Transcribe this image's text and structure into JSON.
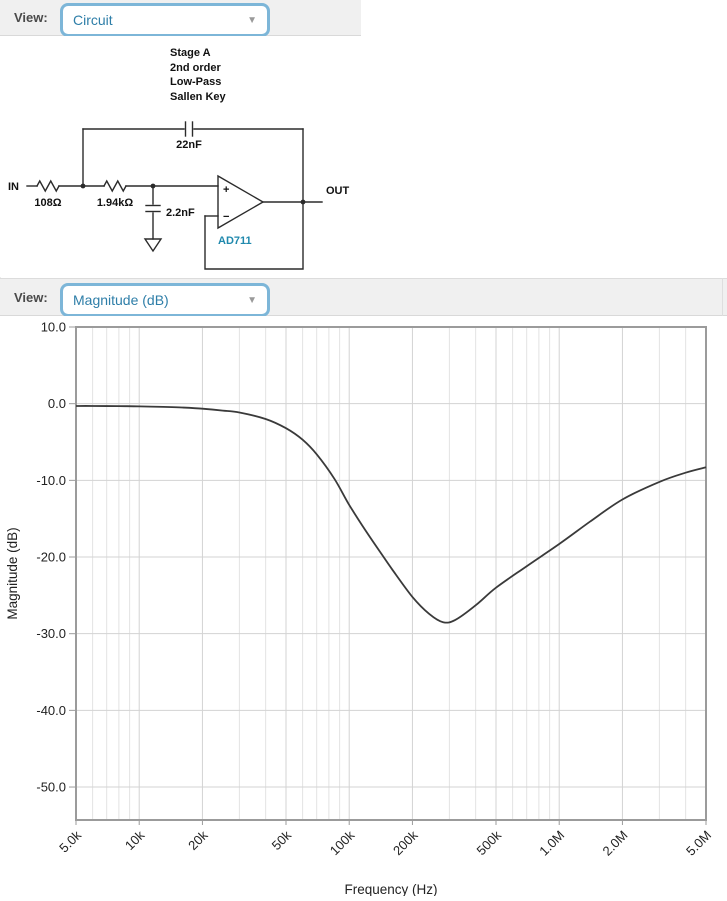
{
  "circuit_view": {
    "label": "View:",
    "dropdown_value": "Circuit",
    "stage_info": [
      "Stage A",
      "2nd order",
      "Low-Pass",
      "Sallen Key"
    ],
    "components": {
      "in": "IN",
      "out": "OUT",
      "r1": "108Ω",
      "r2": "1.94kΩ",
      "c_shunt": "2.2nF",
      "c_feedback": "22nF",
      "opamp": "AD711",
      "plus": "+",
      "minus": "−"
    }
  },
  "magnitude_view": {
    "label": "View:",
    "dropdown_value": "Magnitude (dB)"
  },
  "colors": {
    "bar_background": "#f0f0f0",
    "dropdown_border": "#7db6d8",
    "dropdown_text": "#2e7ea8",
    "opamp_label": "#2089ad",
    "circuit_line": "#2b2b2b",
    "curve": "#3a3a3a",
    "grid_major": "#d3d3d3",
    "grid_minor": "#e3e3e3",
    "plot_border": "#9b9b9b",
    "tick_text": "#222222"
  },
  "chart_data": {
    "type": "line",
    "xlabel": "Frequency (Hz)",
    "ylabel": "Magnitude (dB)",
    "x_scale": "log",
    "x_range": [
      5000,
      5000000
    ],
    "y_range": [
      10,
      -54.3
    ],
    "grid": true,
    "y_ticks": [
      {
        "db": 10,
        "label": "10.0"
      },
      {
        "db": 0,
        "label": "0.0"
      },
      {
        "db": -10,
        "label": "-10.0"
      },
      {
        "db": -20,
        "label": "-20.0"
      },
      {
        "db": -30,
        "label": "-30.0"
      },
      {
        "db": -40,
        "label": "-40.0"
      },
      {
        "db": -50,
        "label": "-50.0"
      }
    ],
    "x_ticks": [
      {
        "f": 5000,
        "label": "5.0k"
      },
      {
        "f": 10000,
        "label": "10k"
      },
      {
        "f": 20000,
        "label": "20k"
      },
      {
        "f": 50000,
        "label": "50k"
      },
      {
        "f": 100000,
        "label": "100k"
      },
      {
        "f": 200000,
        "label": "200k"
      },
      {
        "f": 500000,
        "label": "500k"
      },
      {
        "f": 1000000,
        "label": "1.0M"
      },
      {
        "f": 2000000,
        "label": "2.0M"
      },
      {
        "f": 5000000,
        "label": "5.0M"
      }
    ],
    "x_minor": [
      6000,
      7000,
      8000,
      9000,
      30000,
      40000,
      60000,
      70000,
      80000,
      90000,
      300000,
      400000,
      600000,
      700000,
      800000,
      900000,
      3000000,
      4000000
    ],
    "series": [
      {
        "points": [
          [
            5000,
            -0.3
          ],
          [
            6000,
            -0.3
          ],
          [
            8000,
            -0.32
          ],
          [
            10000,
            -0.35
          ],
          [
            13000,
            -0.42
          ],
          [
            16000,
            -0.5
          ],
          [
            20000,
            -0.65
          ],
          [
            25000,
            -0.9
          ],
          [
            30000,
            -1.15
          ],
          [
            40000,
            -2.0
          ],
          [
            50000,
            -3.2
          ],
          [
            60000,
            -4.7
          ],
          [
            70000,
            -6.6
          ],
          [
            85000,
            -9.8
          ],
          [
            100000,
            -13.2
          ],
          [
            120000,
            -16.6
          ],
          [
            140000,
            -19.3
          ],
          [
            160000,
            -21.6
          ],
          [
            200000,
            -25.2
          ],
          [
            240000,
            -27.4
          ],
          [
            280000,
            -28.5
          ],
          [
            320000,
            -28.2
          ],
          [
            400000,
            -26.3
          ],
          [
            500000,
            -24.0
          ],
          [
            700000,
            -21.2
          ],
          [
            1000000,
            -18.3
          ],
          [
            1400000,
            -15.4
          ],
          [
            2000000,
            -12.5
          ],
          [
            3000000,
            -10.2
          ],
          [
            4000000,
            -9.0
          ],
          [
            5000000,
            -8.3
          ]
        ]
      }
    ]
  }
}
